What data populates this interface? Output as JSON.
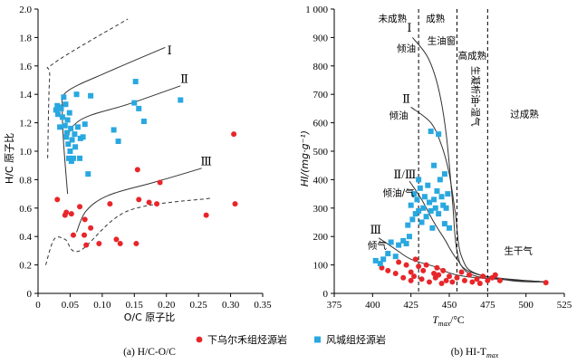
{
  "colors": {
    "red": "#e8262a",
    "blue": "#29a8e0",
    "axis": "#000000",
    "curve": "#333333"
  },
  "legend": {
    "items": [
      {
        "label": "下乌尔禾组烃源岩",
        "marker": "circle",
        "color": "#e8262a"
      },
      {
        "label": "风城组烃源岩",
        "marker": "square",
        "color": "#29a8e0"
      }
    ]
  },
  "chart_data": [
    {
      "type": "scatter",
      "caption": "(a) H/C-O/C",
      "xlabel": "O/C 原子比",
      "ylabel": "H/C 原子比",
      "xlim": [
        0,
        0.35
      ],
      "ylim": [
        0,
        2.0
      ],
      "xticks": [
        "0",
        "0.05",
        "0.10",
        "0.15",
        "0.20",
        "0.25",
        "0.30",
        "0.35"
      ],
      "yticks": [
        "0",
        "0.2",
        "0.4",
        "0.6",
        "0.8",
        "1.0",
        "1.2",
        "1.4",
        "1.6",
        "1.8",
        "2.0"
      ],
      "xtick_values": [
        0,
        0.05,
        0.1,
        0.15,
        0.2,
        0.25,
        0.3,
        0.35
      ],
      "ytick_values": [
        0,
        0.2,
        0.4,
        0.6,
        0.8,
        1.0,
        1.2,
        1.4,
        1.6,
        1.8,
        2.0
      ],
      "annotations": [
        {
          "text": "Ⅰ",
          "x": 0.205,
          "y": 1.68
        },
        {
          "text": "Ⅱ",
          "x": 0.228,
          "y": 1.48
        },
        {
          "text": "Ⅲ",
          "x": 0.262,
          "y": 0.9
        }
      ],
      "curves": [
        {
          "name": "Ⅰ",
          "style": "solid",
          "points": [
            [
              0.046,
              0.7
            ],
            [
              0.04,
              1.05
            ],
            [
              0.038,
              1.3
            ],
            [
              0.045,
              1.42
            ],
            [
              0.11,
              1.56
            ],
            [
              0.198,
              1.73
            ]
          ]
        },
        {
          "name": "Ⅱ",
          "style": "solid",
          "points": [
            [
              0.046,
              1.1
            ],
            [
              0.055,
              1.18
            ],
            [
              0.08,
              1.25
            ],
            [
              0.14,
              1.33
            ],
            [
              0.222,
              1.46
            ]
          ]
        },
        {
          "name": "Ⅲ",
          "style": "solid",
          "points": [
            [
              0.06,
              0.43
            ],
            [
              0.075,
              0.58
            ],
            [
              0.11,
              0.69
            ],
            [
              0.18,
              0.78
            ],
            [
              0.255,
              0.88
            ]
          ]
        },
        {
          "name": "upper-bound",
          "style": "dashed",
          "points": [
            [
              0.015,
              0.95
            ],
            [
              0.018,
              1.52
            ],
            [
              0.025,
              1.62
            ],
            [
              0.14,
              1.93
            ]
          ]
        },
        {
          "name": "lower-bound",
          "style": "dashed",
          "points": [
            [
              0.012,
              0.2
            ],
            [
              0.025,
              0.38
            ],
            [
              0.042,
              0.38
            ],
            [
              0.065,
              0.3
            ],
            [
              0.14,
              0.58
            ],
            [
              0.27,
              0.67
            ]
          ]
        }
      ],
      "series": [
        {
          "name": "下乌尔禾组烃源岩",
          "marker": "circle",
          "color": "#e8262a",
          "points": [
            [
              0.03,
              0.66
            ],
            [
              0.042,
              0.55
            ],
            [
              0.044,
              0.57
            ],
            [
              0.052,
              0.56
            ],
            [
              0.055,
              0.41
            ],
            [
              0.065,
              0.61
            ],
            [
              0.072,
              0.41
            ],
            [
              0.073,
              0.52
            ],
            [
              0.075,
              0.34
            ],
            [
              0.082,
              0.46
            ],
            [
              0.095,
              0.35
            ],
            [
              0.112,
              0.63
            ],
            [
              0.122,
              0.38
            ],
            [
              0.128,
              0.35
            ],
            [
              0.153,
              0.35
            ],
            [
              0.155,
              0.87
            ],
            [
              0.157,
              0.66
            ],
            [
              0.173,
              0.64
            ],
            [
              0.185,
              0.63
            ],
            [
              0.19,
              0.78
            ],
            [
              0.262,
              0.55
            ],
            [
              0.305,
              1.12
            ],
            [
              0.307,
              0.63
            ]
          ]
        },
        {
          "name": "风城组烃源岩",
          "marker": "square",
          "color": "#29a8e0",
          "points": [
            [
              0.028,
              1.29
            ],
            [
              0.03,
              1.32
            ],
            [
              0.031,
              1.26
            ],
            [
              0.033,
              1.31
            ],
            [
              0.034,
              1.17
            ],
            [
              0.036,
              1.3
            ],
            [
              0.038,
              1.24
            ],
            [
              0.04,
              1.38
            ],
            [
              0.042,
              1.18
            ],
            [
              0.043,
              1.33
            ],
            [
              0.044,
              1.1
            ],
            [
              0.045,
              1.13
            ],
            [
              0.046,
              1.22
            ],
            [
              0.047,
              1.05
            ],
            [
              0.048,
              0.95
            ],
            [
              0.049,
              1.27
            ],
            [
              0.05,
              1.0
            ],
            [
              0.051,
              1.16
            ],
            [
              0.052,
              0.93
            ],
            [
              0.053,
              1.08
            ],
            [
              0.055,
              0.95
            ],
            [
              0.057,
              1.12
            ],
            [
              0.058,
              1.03
            ],
            [
              0.06,
              1.4
            ],
            [
              0.062,
              1.17
            ],
            [
              0.065,
              0.95
            ],
            [
              0.066,
              1.09
            ],
            [
              0.07,
              1.1
            ],
            [
              0.073,
              1.19
            ],
            [
              0.078,
              0.84
            ],
            [
              0.082,
              1.39
            ],
            [
              0.118,
              1.15
            ],
            [
              0.125,
              1.07
            ],
            [
              0.15,
              1.34
            ],
            [
              0.152,
              1.49
            ],
            [
              0.157,
              1.3
            ],
            [
              0.165,
              1.21
            ],
            [
              0.222,
              1.36
            ]
          ]
        }
      ]
    },
    {
      "type": "scatter",
      "caption": "(b) HI-T",
      "caption_sub": "max",
      "xlabel_main": "T",
      "xlabel_sub": "max",
      "xlabel_tail": "/°C",
      "ylabel": "HI/(mg·g⁻¹)",
      "xlim": [
        375,
        525
      ],
      "ylim": [
        0,
        1000
      ],
      "xticks": [
        "375",
        "400",
        "425",
        "450",
        "475",
        "500",
        "525"
      ],
      "yticks": [
        "0",
        "100",
        "200",
        "300",
        "400",
        "500",
        "600",
        "700",
        "800",
        "900",
        "1 000"
      ],
      "xtick_values": [
        375,
        400,
        425,
        450,
        475,
        500,
        525
      ],
      "ytick_values": [
        0,
        100,
        200,
        300,
        400,
        500,
        600,
        700,
        800,
        900,
        1000
      ],
      "zone_boundaries": [
        430,
        455,
        475
      ],
      "zone_labels": [
        {
          "text": "未成熟",
          "x": 413,
          "y": 955
        },
        {
          "text": "成熟",
          "x": 441,
          "y": 955
        },
        {
          "text": "高成熟",
          "x": 465,
          "y": 825
        },
        {
          "text": "过成熟",
          "x": 499,
          "y": 620
        }
      ],
      "vertical_labels": [
        {
          "text": "生凝析油-湿气",
          "x": 465,
          "y": 800
        }
      ],
      "annotations": [
        {
          "text": "倾油",
          "x": 422,
          "y": 850,
          "style": "cjk"
        },
        {
          "text": "生油窗",
          "x": 445,
          "y": 878,
          "style": "cjk"
        },
        {
          "text": "倾油",
          "x": 417,
          "y": 615,
          "style": "cjk"
        },
        {
          "text": "倾油/气",
          "x": 417,
          "y": 342,
          "style": "cjk"
        },
        {
          "text": "倾气",
          "x": 403,
          "y": 158,
          "style": "cjk"
        },
        {
          "text": "生干气",
          "x": 495,
          "y": 138,
          "style": "cjk"
        },
        {
          "text": "Ⅰ",
          "x": 424,
          "y": 920,
          "style": "roman"
        },
        {
          "text": "Ⅱ",
          "x": 422,
          "y": 670,
          "style": "roman"
        },
        {
          "text": "Ⅱ/Ⅲ",
          "x": 421,
          "y": 405,
          "style": "roman"
        },
        {
          "text": "Ⅲ",
          "x": 402,
          "y": 210,
          "style": "roman"
        }
      ],
      "curves": [
        {
          "name": "Ⅰ",
          "style": "solid",
          "points": [
            [
              426,
              900
            ],
            [
              436,
              830
            ],
            [
              443,
              720
            ],
            [
              448,
              560
            ],
            [
              452,
              330
            ],
            [
              455,
              150
            ],
            [
              462,
              80
            ],
            [
              490,
              45
            ],
            [
              513,
              40
            ]
          ]
        },
        {
          "name": "Ⅱ",
          "style": "solid",
          "points": [
            [
              425,
              655
            ],
            [
              438,
              600
            ],
            [
              445,
              520
            ],
            [
              450,
              420
            ],
            [
              454,
              280
            ],
            [
              458,
              130
            ],
            [
              470,
              65
            ],
            [
              513,
              40
            ]
          ]
        },
        {
          "name": "Ⅱ/Ⅲ",
          "style": "solid",
          "points": [
            [
              424,
              395
            ],
            [
              432,
              330
            ],
            [
              440,
              250
            ],
            [
              447,
              190
            ],
            [
              455,
              120
            ],
            [
              468,
              60
            ],
            [
              513,
              40
            ]
          ]
        },
        {
          "name": "Ⅲ",
          "style": "solid",
          "points": [
            [
              404,
              195
            ],
            [
              415,
              155
            ],
            [
              425,
              120
            ],
            [
              440,
              95
            ],
            [
              460,
              60
            ],
            [
              513,
              40
            ]
          ]
        }
      ],
      "series": [
        {
          "name": "下乌尔禾组烃源岩",
          "marker": "circle",
          "color": "#e8262a",
          "points": [
            [
              406,
              90
            ],
            [
              410,
              80
            ],
            [
              415,
              70
            ],
            [
              417,
              110
            ],
            [
              420,
              55
            ],
            [
              422,
              100
            ],
            [
              425,
              45
            ],
            [
              425,
              75
            ],
            [
              427,
              60
            ],
            [
              428,
              120
            ],
            [
              430,
              95
            ],
            [
              432,
              50
            ],
            [
              433,
              80
            ],
            [
              435,
              100
            ],
            [
              437,
              40
            ],
            [
              440,
              70
            ],
            [
              441,
              55
            ],
            [
              442,
              90
            ],
            [
              443,
              65
            ],
            [
              445,
              35
            ],
            [
              446,
              80
            ],
            [
              448,
              45
            ],
            [
              450,
              60
            ],
            [
              452,
              40
            ],
            [
              455,
              55
            ],
            [
              458,
              75
            ],
            [
              460,
              45
            ],
            [
              463,
              65
            ],
            [
              465,
              40
            ],
            [
              468,
              50
            ],
            [
              470,
              35
            ],
            [
              472,
              60
            ],
            [
              475,
              45
            ],
            [
              478,
              55
            ],
            [
              480,
              65
            ],
            [
              483,
              45
            ],
            [
              513,
              38
            ]
          ]
        },
        {
          "name": "风城组烃源岩",
          "marker": "square",
          "color": "#29a8e0",
          "points": [
            [
              402,
              115
            ],
            [
              405,
              105
            ],
            [
              407,
              120
            ],
            [
              410,
              140
            ],
            [
              412,
              180
            ],
            [
              415,
              130
            ],
            [
              417,
              170
            ],
            [
              420,
              185
            ],
            [
              422,
              175
            ],
            [
              423,
              240
            ],
            [
              424,
              200
            ],
            [
              425,
              310
            ],
            [
              426,
              260
            ],
            [
              427,
              350
            ],
            [
              428,
              280
            ],
            [
              429,
              330
            ],
            [
              430,
              290
            ],
            [
              430,
              400
            ],
            [
              431,
              370
            ],
            [
              432,
              250
            ],
            [
              433,
              300
            ],
            [
              434,
              340
            ],
            [
              435,
              270
            ],
            [
              436,
              380
            ],
            [
              437,
              320
            ],
            [
              438,
              290
            ],
            [
              439,
              230
            ],
            [
              440,
              330
            ],
            [
              440,
              450
            ],
            [
              441,
              300
            ],
            [
              442,
              360
            ],
            [
              443,
              280
            ],
            [
              444,
              400
            ],
            [
              445,
              340
            ],
            [
              446,
              310
            ],
            [
              447,
              420
            ],
            [
              448,
              300
            ],
            [
              450,
              230
            ],
            [
              438,
              570
            ],
            [
              443,
              560
            ],
            [
              447,
              245
            ],
            [
              449,
              350
            ]
          ]
        }
      ]
    }
  ]
}
